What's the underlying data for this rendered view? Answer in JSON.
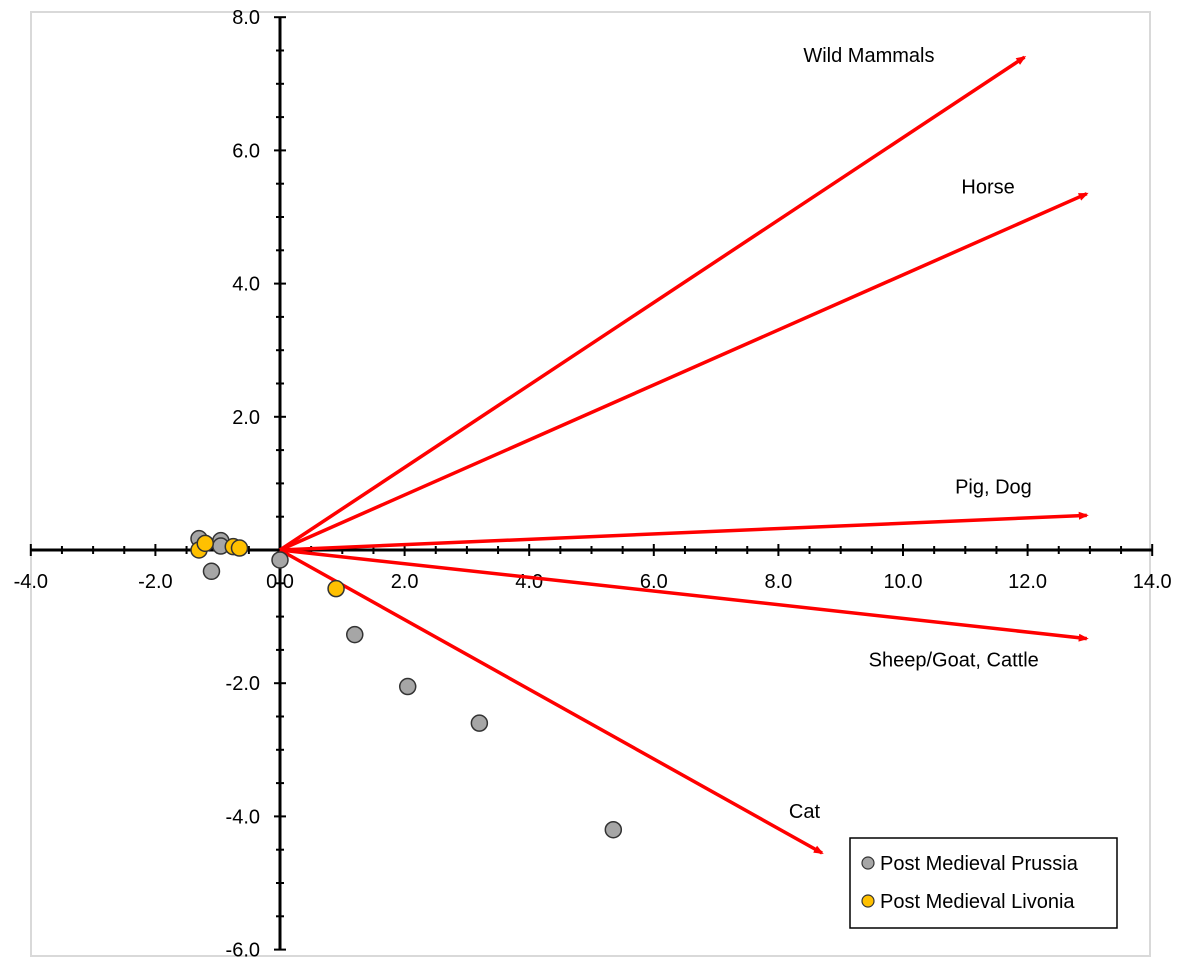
{
  "chart_data": {
    "type": "scatter",
    "title": "",
    "xlabel": "",
    "ylabel": "",
    "xlim": [
      -4.0,
      14.0
    ],
    "ylim": [
      -6.0,
      8.0
    ],
    "x_ticks": [
      "-4.0",
      "-2.0",
      "0.0",
      "2.0",
      "4.0",
      "6.0",
      "8.0",
      "10.0",
      "12.0",
      "14.0"
    ],
    "y_ticks": [
      "-6.0",
      "-4.0",
      "-2.0",
      "0.0",
      "2.0",
      "4.0",
      "6.0",
      "8.0"
    ],
    "grid": false,
    "legend_position": "bottom-right",
    "series": [
      {
        "name": "Post Medieval Prussia",
        "color": "#a6a6a6",
        "points": [
          {
            "x": -1.3,
            "y": 0.17
          },
          {
            "x": -0.95,
            "y": 0.14
          },
          {
            "x": -0.95,
            "y": 0.06
          },
          {
            "x": -1.1,
            "y": -0.32
          },
          {
            "x": 0.0,
            "y": -0.15
          },
          {
            "x": 1.2,
            "y": -1.27
          },
          {
            "x": 2.05,
            "y": -2.05
          },
          {
            "x": 3.2,
            "y": -2.6
          },
          {
            "x": 5.35,
            "y": -4.2
          }
        ]
      },
      {
        "name": "Post Medieval Livonia",
        "color": "#ffc000",
        "points": [
          {
            "x": -1.3,
            "y": 0.0
          },
          {
            "x": -1.2,
            "y": 0.1
          },
          {
            "x": -0.75,
            "y": 0.05
          },
          {
            "x": -0.65,
            "y": 0.03
          },
          {
            "x": 0.9,
            "y": -0.58
          }
        ]
      }
    ],
    "vectors": [
      {
        "label": "Wild Mammals",
        "x": 11.95,
        "y": 7.4,
        "color": "#ff0000"
      },
      {
        "label": "Horse",
        "x": 12.95,
        "y": 5.35,
        "color": "#ff0000"
      },
      {
        "label": "Pig, Dog",
        "x": 12.95,
        "y": 0.52,
        "color": "#ff0000"
      },
      {
        "label": "Sheep/Goat, Cattle",
        "x": 12.95,
        "y": -1.33,
        "color": "#ff0000"
      },
      {
        "label": "Cat",
        "x": 8.7,
        "y": -4.55,
        "color": "#ff0000"
      }
    ]
  }
}
